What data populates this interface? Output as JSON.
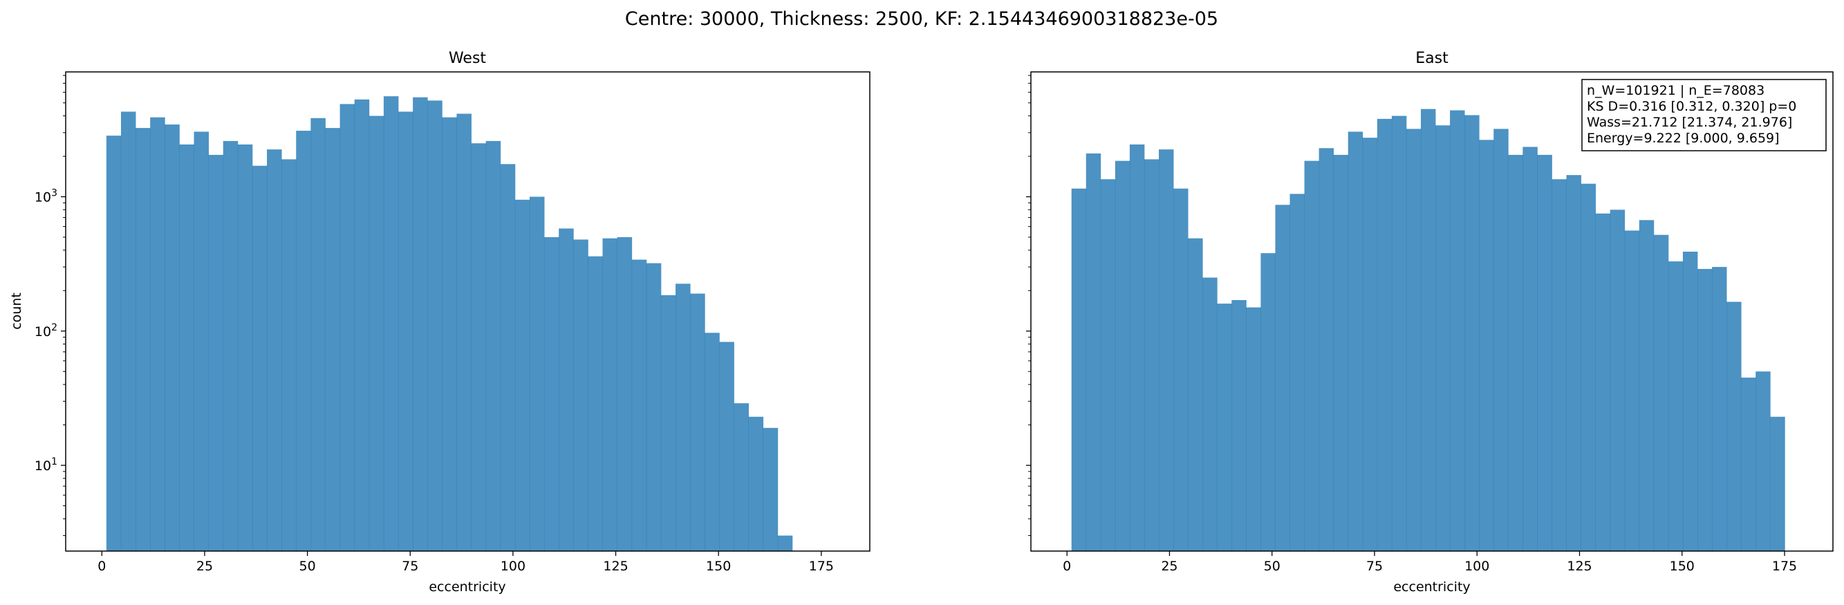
{
  "suptitle": "Centre: 30000, Thickness: 2500, KF: 2.1544346900318823e-05",
  "style": {
    "bar_color": "#1f77b4",
    "bar_opacity": 0.8
  },
  "chart_data": [
    {
      "type": "bar",
      "title": "West",
      "xlabel": "eccentricity",
      "ylabel": "count",
      "yscale": "log",
      "xlim": [
        -8.8,
        186.8
      ],
      "ylim": [
        2.3,
        8500
      ],
      "xticks": [
        0,
        25,
        50,
        75,
        100,
        125,
        150,
        175
      ],
      "yticks": [
        {
          "value": 10,
          "base": "10",
          "exp": "1"
        },
        {
          "value": 100,
          "base": "10",
          "exp": "2"
        },
        {
          "value": 1000,
          "base": "10",
          "exp": "3"
        }
      ],
      "bin_start": 1.1,
      "bin_width": 3.55,
      "values": [
        2850,
        4300,
        3250,
        3900,
        3450,
        2450,
        3050,
        2050,
        2600,
        2450,
        1700,
        2250,
        1900,
        3100,
        3850,
        3250,
        4900,
        5300,
        4000,
        5600,
        4300,
        5500,
        5200,
        3900,
        4150,
        2500,
        2600,
        1750,
        950,
        1000,
        500,
        580,
        480,
        360,
        490,
        500,
        340,
        320,
        185,
        225,
        190,
        97,
        83,
        29,
        23,
        19,
        3
      ]
    },
    {
      "type": "bar",
      "title": "East",
      "xlabel": "eccentricity",
      "ylabel": "",
      "yscale": "log",
      "xlim": [
        -8.8,
        186.8
      ],
      "ylim": [
        2.3,
        8500
      ],
      "xticks": [
        0,
        25,
        50,
        75,
        100,
        125,
        150,
        175
      ],
      "yticks": [],
      "bin_start": 1.1,
      "bin_width": 3.55,
      "values": [
        1150,
        2100,
        1350,
        1850,
        2450,
        1900,
        2250,
        1150,
        490,
        250,
        160,
        170,
        150,
        380,
        870,
        1050,
        1850,
        2300,
        2050,
        3050,
        2750,
        3800,
        4000,
        3200,
        4500,
        3400,
        4400,
        4050,
        2650,
        3200,
        2050,
        2350,
        2050,
        1350,
        1450,
        1250,
        750,
        800,
        560,
        670,
        520,
        330,
        390,
        290,
        300,
        165,
        45,
        50,
        23
      ],
      "annotation": [
        "n_W=101921 | n_E=78083",
        "KS D=0.316 [0.312, 0.320]  p=0",
        "Wass=21.712 [21.374, 21.976]",
        "Energy=9.222 [9.000, 9.659]"
      ]
    }
  ]
}
